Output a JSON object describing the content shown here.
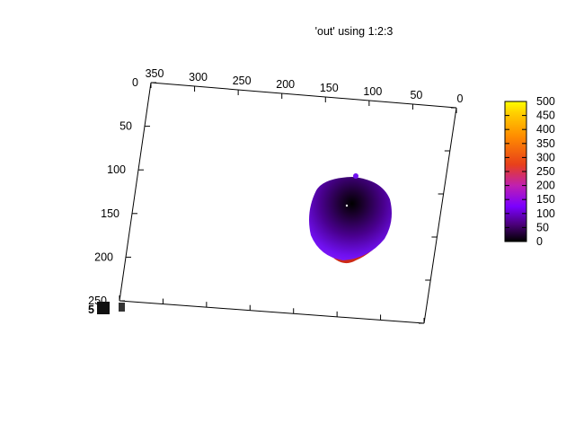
{
  "chart_data": {
    "type": "heatmap",
    "title": "'out' using 1:2:3",
    "x_axis": {
      "range": [
        0,
        350
      ],
      "ticks": [
        "350",
        "300",
        "250",
        "200",
        "150",
        "100",
        "50",
        "0"
      ]
    },
    "y_axis": {
      "range": [
        0,
        250
      ],
      "ticks": [
        "0",
        "50",
        "100",
        "150",
        "200",
        "250"
      ]
    },
    "colorbar": {
      "range": [
        0,
        500
      ],
      "ticks": [
        "500",
        "450",
        "400",
        "350",
        "300",
        "250",
        "200",
        "150",
        "100",
        "50",
        "0"
      ],
      "palette": [
        "#000000",
        "#4a0078",
        "#7a00ff",
        "#c020b0",
        "#e8401a",
        "#ff8c00",
        "#ffd000",
        "#ffff00"
      ]
    },
    "blob": {
      "center_x": 127,
      "center_y": 140,
      "center_value": 0,
      "edge_value": 180,
      "rim_value": 250
    },
    "grid": false,
    "legend": "colorbar-right"
  }
}
